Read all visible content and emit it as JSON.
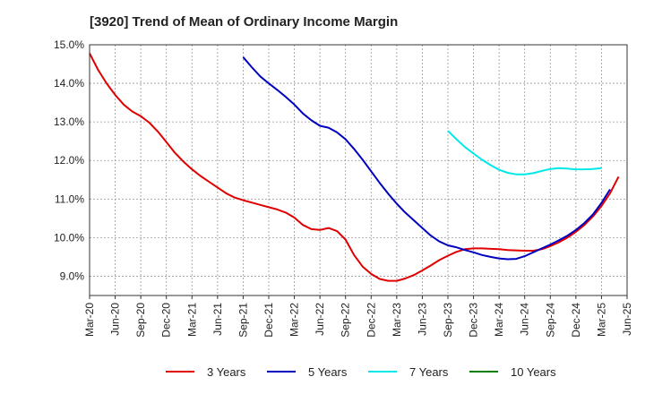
{
  "chart_data": {
    "type": "line",
    "title": "[3920]  Trend of Mean of Ordinary Income Margin",
    "xlabel": "",
    "ylabel": "",
    "x_tick_labels": [
      "Mar-20",
      "Jun-20",
      "Sep-20",
      "Dec-20",
      "Mar-21",
      "Jun-21",
      "Sep-21",
      "Dec-21",
      "Mar-22",
      "Jun-22",
      "Sep-22",
      "Dec-22",
      "Mar-23",
      "Jun-23",
      "Sep-23",
      "Dec-23",
      "Mar-24",
      "Jun-24",
      "Sep-24",
      "Dec-24",
      "Mar-25",
      "Jun-25"
    ],
    "y_tick_labels": [
      "9.0%",
      "10.0%",
      "11.0%",
      "12.0%",
      "13.0%",
      "14.0%",
      "15.0%"
    ],
    "ylim": [
      8.5,
      15.0
    ],
    "grid": true,
    "legend_position": "bottom",
    "series": [
      {
        "name": "3 Years",
        "color": "#e00000",
        "start_index": 0,
        "values": [
          14.78,
          14.35,
          14.0,
          13.7,
          13.45,
          13.27,
          13.15,
          12.98,
          12.75,
          12.48,
          12.2,
          11.97,
          11.77,
          11.6,
          11.45,
          11.3,
          11.15,
          11.04,
          10.97,
          10.91,
          10.85,
          10.79,
          10.73,
          10.65,
          10.52,
          10.33,
          10.22,
          10.2,
          10.25,
          10.17,
          9.95,
          9.55,
          9.25,
          9.06,
          8.93,
          8.88,
          8.88,
          8.94,
          9.03,
          9.15,
          9.28,
          9.42,
          9.53,
          9.63,
          9.7,
          9.72,
          9.72,
          9.71,
          9.7,
          9.68,
          9.67,
          9.66,
          9.66,
          9.7,
          9.78,
          9.88,
          10.0,
          10.15,
          10.33,
          10.55,
          10.82,
          11.15,
          11.58
        ]
      },
      {
        "name": "5 Years",
        "color": "#0000c0",
        "start_index": 18,
        "values": [
          14.68,
          14.42,
          14.18,
          14.0,
          13.83,
          13.65,
          13.45,
          13.22,
          13.04,
          12.9,
          12.85,
          12.73,
          12.55,
          12.3,
          12.02,
          11.72,
          11.42,
          11.14,
          10.88,
          10.65,
          10.45,
          10.25,
          10.05,
          9.9,
          9.8,
          9.75,
          9.68,
          9.62,
          9.55,
          9.5,
          9.46,
          9.44,
          9.45,
          9.52,
          9.62,
          9.72,
          9.82,
          9.93,
          10.05,
          10.2,
          10.38,
          10.6,
          10.9,
          11.25
        ]
      },
      {
        "name": "7 Years",
        "color": "#00e8e8",
        "start_index": 42,
        "values": [
          12.77,
          12.55,
          12.35,
          12.18,
          12.02,
          11.88,
          11.76,
          11.68,
          11.64,
          11.64,
          11.67,
          11.73,
          11.78,
          11.8,
          11.79,
          11.77,
          11.77,
          11.78,
          11.8
        ]
      },
      {
        "name": "10 Years",
        "color": "#008000",
        "start_index": 0,
        "values": []
      }
    ]
  }
}
